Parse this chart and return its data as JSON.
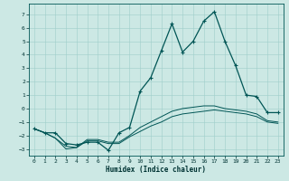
{
  "xlabel": "Humidex (Indice chaleur)",
  "xlim": [
    -0.5,
    23.5
  ],
  "ylim": [
    -3.5,
    7.8
  ],
  "yticks": [
    -3,
    -2,
    -1,
    0,
    1,
    2,
    3,
    4,
    5,
    6,
    7
  ],
  "xticks": [
    0,
    1,
    2,
    3,
    4,
    5,
    6,
    7,
    8,
    9,
    10,
    11,
    12,
    13,
    14,
    15,
    16,
    17,
    18,
    19,
    20,
    21,
    22,
    23
  ],
  "background_color": "#cce8e4",
  "grid_color": "#9fceca",
  "line_color": "#005555",
  "line1_x": [
    0,
    1,
    2,
    3,
    4,
    5,
    6,
    7,
    8,
    9,
    10,
    11,
    12,
    13,
    14,
    15,
    16,
    17,
    18,
    19,
    20,
    21,
    22,
    23
  ],
  "line1_y": [
    -1.5,
    -1.8,
    -1.8,
    -2.6,
    -2.7,
    -2.5,
    -2.5,
    -3.1,
    -1.8,
    -1.4,
    1.3,
    2.3,
    4.3,
    6.3,
    4.2,
    5.0,
    6.5,
    7.2,
    5.0,
    3.2,
    1.0,
    0.9,
    -0.3,
    -0.3
  ],
  "line2_x": [
    0,
    1,
    2,
    3,
    4,
    5,
    6,
    7,
    8,
    9,
    10,
    11,
    12,
    13,
    14,
    15,
    16,
    17,
    18,
    19,
    20,
    21,
    22,
    23
  ],
  "line2_y": [
    -1.5,
    -1.8,
    -2.2,
    -3.0,
    -2.9,
    -2.4,
    -2.4,
    -2.6,
    -2.6,
    -2.1,
    -1.7,
    -1.3,
    -1.0,
    -0.6,
    -0.4,
    -0.3,
    -0.2,
    -0.1,
    -0.2,
    -0.3,
    -0.4,
    -0.6,
    -1.0,
    -1.1
  ],
  "line3_x": [
    0,
    1,
    2,
    3,
    4,
    5,
    6,
    7,
    8,
    9,
    10,
    11,
    12,
    13,
    14,
    15,
    16,
    17,
    18,
    19,
    20,
    21,
    22,
    23
  ],
  "line3_y": [
    -1.5,
    -1.8,
    -2.2,
    -2.8,
    -2.9,
    -2.3,
    -2.3,
    -2.5,
    -2.5,
    -2.0,
    -1.4,
    -1.0,
    -0.6,
    -0.2,
    0.0,
    0.1,
    0.2,
    0.2,
    0.0,
    -0.1,
    -0.2,
    -0.4,
    -0.9,
    -1.0
  ]
}
